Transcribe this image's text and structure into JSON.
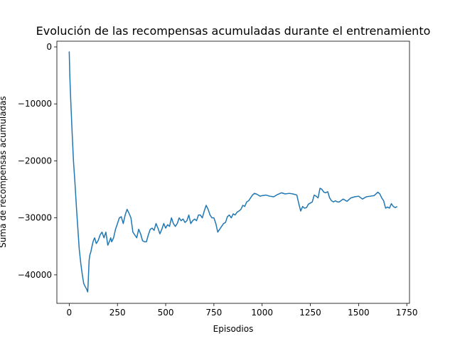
{
  "chart_data": {
    "type": "line",
    "title": "Evolución de las recompensas acumuladas durante el entrenamiento",
    "xlabel": "Episodios",
    "ylabel": "Suma de recompensas acumuladas",
    "xlim": [
      -64,
      1764
    ],
    "ylim": [
      -45000,
      1000
    ],
    "xticks": [
      0,
      250,
      500,
      750,
      1000,
      1250,
      1500,
      1750
    ],
    "xtick_labels": [
      "0",
      "250",
      "500",
      "750",
      "1000",
      "1250",
      "1500",
      "1750"
    ],
    "yticks": [
      0,
      -10000,
      -20000,
      -30000,
      -40000
    ],
    "ytick_labels": [
      "0",
      "−10000",
      "−20000",
      "−30000",
      "−40000"
    ],
    "grid": false,
    "legend": "none",
    "series": [
      {
        "color": "#1f77b4",
        "x": [
          0,
          3,
          8,
          15,
          22,
          30,
          38,
          45,
          52,
          60,
          68,
          75,
          82,
          90,
          96,
          100,
          103,
          107,
          112,
          118,
          125,
          132,
          140,
          150,
          160,
          170,
          180,
          190,
          200,
          210,
          215,
          220,
          230,
          240,
          250,
          260,
          270,
          280,
          290,
          300,
          310,
          320,
          330,
          340,
          350,
          360,
          370,
          380,
          390,
          400,
          410,
          420,
          430,
          440,
          450,
          460,
          470,
          480,
          490,
          500,
          510,
          520,
          530,
          540,
          550,
          560,
          570,
          580,
          590,
          600,
          610,
          620,
          630,
          640,
          650,
          660,
          670,
          680,
          690,
          700,
          710,
          720,
          730,
          740,
          750,
          760,
          770,
          780,
          790,
          800,
          810,
          820,
          830,
          840,
          850,
          860,
          870,
          880,
          890,
          900,
          910,
          920,
          930,
          940,
          950,
          960,
          970,
          980,
          990,
          1000,
          1020,
          1040,
          1060,
          1080,
          1100,
          1120,
          1140,
          1160,
          1180,
          1190,
          1200,
          1210,
          1220,
          1230,
          1240,
          1250,
          1260,
          1270,
          1280,
          1290,
          1300,
          1310,
          1320,
          1330,
          1340,
          1350,
          1360,
          1370,
          1380,
          1390,
          1400,
          1420,
          1440,
          1460,
          1480,
          1500,
          1520,
          1540,
          1560,
          1580,
          1600,
          1610,
          1620,
          1630,
          1640,
          1650,
          1660,
          1670,
          1680,
          1690,
          1700
        ],
        "values": [
          -800,
          -5000,
          -9500,
          -15000,
          -20000,
          -24000,
          -28500,
          -32000,
          -35500,
          -38000,
          -40000,
          -41500,
          -42000,
          -42500,
          -43000,
          -40000,
          -37500,
          -36500,
          -36000,
          -35000,
          -34000,
          -33500,
          -34500,
          -34000,
          -33000,
          -32500,
          -33500,
          -32500,
          -34800,
          -34000,
          -33500,
          -34200,
          -33500,
          -32000,
          -31000,
          -30000,
          -29800,
          -31000,
          -29500,
          -28500,
          -29200,
          -30000,
          -32500,
          -33000,
          -33500,
          -32000,
          -32800,
          -34000,
          -34200,
          -34200,
          -33000,
          -32000,
          -31800,
          -32200,
          -31000,
          -31800,
          -32800,
          -32000,
          -31000,
          -31800,
          -31200,
          -31500,
          -30000,
          -31000,
          -31500,
          -31000,
          -30000,
          -30500,
          -30200,
          -30800,
          -30500,
          -29500,
          -31000,
          -30500,
          -30200,
          -30500,
          -29500,
          -29500,
          -30000,
          -28800,
          -27800,
          -28500,
          -29500,
          -30000,
          -30000,
          -31000,
          -32500,
          -32000,
          -31500,
          -31000,
          -30800,
          -29800,
          -29500,
          -30000,
          -29300,
          -29500,
          -29000,
          -28800,
          -28500,
          -27800,
          -28000,
          -27200,
          -27000,
          -26500,
          -26000,
          -25700,
          -25800,
          -26000,
          -26200,
          -26100,
          -26000,
          -26200,
          -26300,
          -25900,
          -25600,
          -25800,
          -25700,
          -25800,
          -26000,
          -27500,
          -28800,
          -28000,
          -28300,
          -28200,
          -27600,
          -27400,
          -27200,
          -26000,
          -26200,
          -26500,
          -24800,
          -25000,
          -25500,
          -25600,
          -25400,
          -26500,
          -27000,
          -27200,
          -27000,
          -27200,
          -27200,
          -26700,
          -27100,
          -26500,
          -26300,
          -26200,
          -26700,
          -26300,
          -26200,
          -26100,
          -25500,
          -25800,
          -26500,
          -27000,
          -28300,
          -28100,
          -28300,
          -27500,
          -28000,
          -28200,
          -28000
        ]
      }
    ]
  }
}
